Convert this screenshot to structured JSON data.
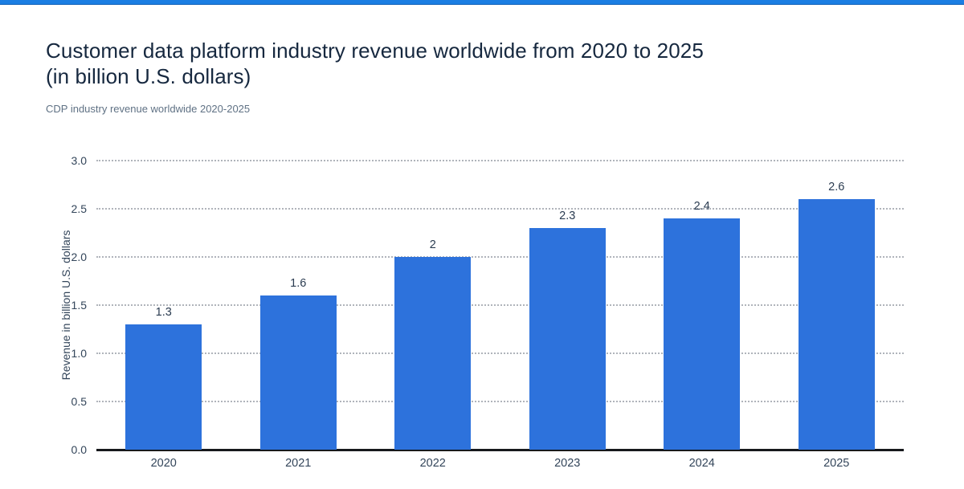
{
  "page": {
    "background": "#ffffff",
    "top_bar_color": "#1b7ee3"
  },
  "header": {
    "title_line1": "Customer data platform industry revenue worldwide from 2020 to 2025",
    "title_line2": "(in billion U.S. dollars)",
    "subtitle": "CDP industry revenue worldwide 2020-2025",
    "title_color": "#16283f",
    "subtitle_color": "#5f7184"
  },
  "chart_data": {
    "type": "bar",
    "title": "Customer data platform industry revenue worldwide from 2020 to 2025 (in billion U.S. dollars)",
    "categories": [
      "2020",
      "2021",
      "2022",
      "2023",
      "2024",
      "2025"
    ],
    "values": [
      1.3,
      1.6,
      2,
      2.3,
      2.4,
      2.6
    ],
    "value_labels": [
      "1.3",
      "1.6",
      "2",
      "2.3",
      "2.4",
      "2.6"
    ],
    "xlabel": "",
    "ylabel": "Revenue in billion U.S. dollars",
    "ylim": [
      0,
      3
    ],
    "ytick_step": 0.5,
    "ytick_labels": [
      "0.0",
      "0.5",
      "1.0",
      "1.5",
      "2.0",
      "2.5",
      "3.0"
    ],
    "grid": true,
    "gridline_style": "dotted",
    "legend_position": "none",
    "bar_color": "#2d72dc",
    "axis_text_color": "#33455a",
    "value_label_color": "#2b3c51",
    "gridline_color": "#b0b4bb",
    "axis_line_color": "#17191c"
  }
}
